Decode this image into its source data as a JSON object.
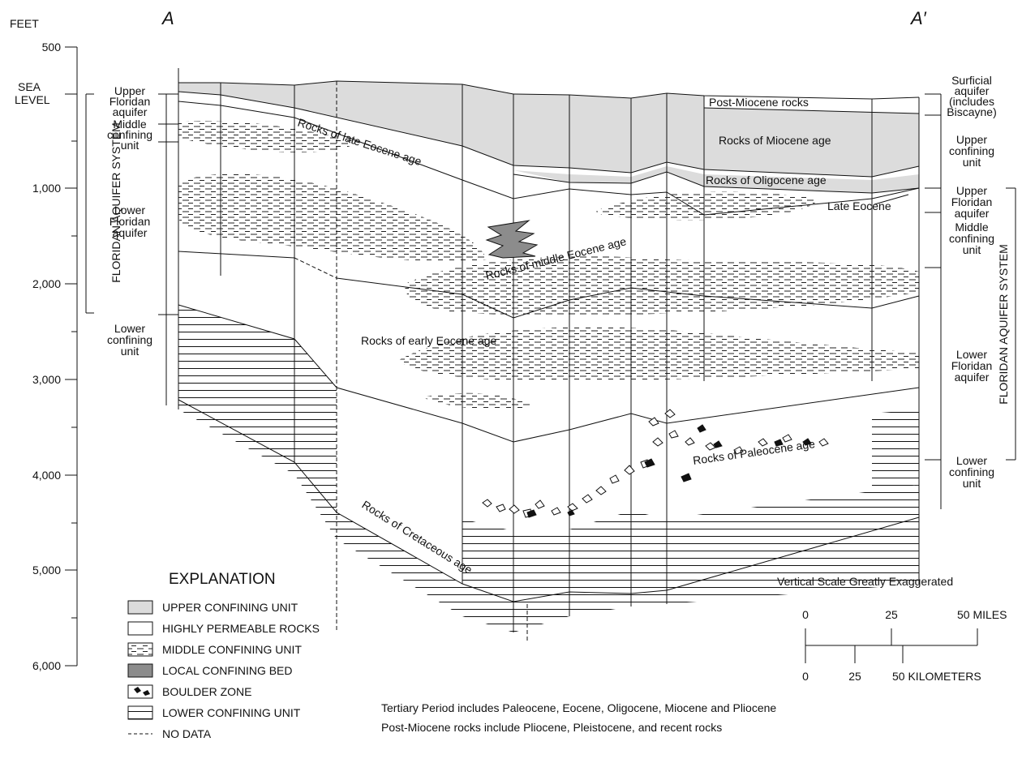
{
  "header": {
    "section_start": "A",
    "section_end": "A′"
  },
  "depth_axis": {
    "unit": "FEET",
    "sea_level": [
      "SEA",
      "LEVEL"
    ],
    "ticks": [
      "500",
      "1,000",
      "2,000",
      "3,000",
      "4,000",
      "5,000",
      "6,000"
    ]
  },
  "left_units": [
    {
      "lines": [
        "Upper",
        "Floridan",
        "aquifer"
      ]
    },
    {
      "lines": [
        "Middle",
        "confining",
        "unit"
      ]
    },
    {
      "lines": [
        "Lower",
        "Floridan",
        "aquifer"
      ]
    },
    {
      "lines": [
        "Lower",
        "confining",
        "unit"
      ]
    }
  ],
  "left_system": "FLORIDAN AQUIFER SYSTEM",
  "right_units": [
    {
      "lines": [
        "Surficial",
        "aquifer",
        "(includes",
        "Biscayne)"
      ]
    },
    {
      "lines": [
        "Upper",
        "confining",
        "unit"
      ]
    },
    {
      "lines": [
        "Upper",
        "Floridan",
        "aquifer"
      ]
    },
    {
      "lines": [
        "Middle",
        "confining",
        "unit"
      ]
    },
    {
      "lines": [
        "Lower",
        "Floridan",
        "aquifer"
      ]
    },
    {
      "lines": [
        "Lower",
        "confining",
        "unit"
      ]
    }
  ],
  "right_system": "FLORIDAN AQUIFER SYSTEM",
  "rock_labels": [
    "Post-Miocene rocks",
    "Rocks of Miocene age",
    "Rocks of Oligocene age",
    "Rocks of late Eocene age",
    "Late Eocene",
    "Rocks of middle Eocene age",
    "Rocks of early Eocene age",
    "Rocks of Paleocene age",
    "Rocks of Cretaceous age"
  ],
  "explanation": {
    "title": "EXPLANATION",
    "items": [
      "UPPER CONFINING UNIT",
      "HIGHLY PERMEABLE ROCKS",
      "MIDDLE CONFINING UNIT",
      "LOCAL CONFINING BED",
      "BOULDER ZONE",
      "LOWER CONFINING UNIT",
      "NO DATA"
    ]
  },
  "scale": {
    "note": "Vertical Scale Greatly Exaggerated",
    "miles": [
      "0",
      "25",
      "50 MILES"
    ],
    "kilometers": [
      "0",
      "25",
      "50 KILOMETERS"
    ]
  },
  "notes": [
    "Tertiary Period includes Paleocene, Eocene, Oligocene, Miocene and Pliocene",
    "Post-Miocene rocks include Pliocene, Pleistocene, and recent rocks"
  ]
}
